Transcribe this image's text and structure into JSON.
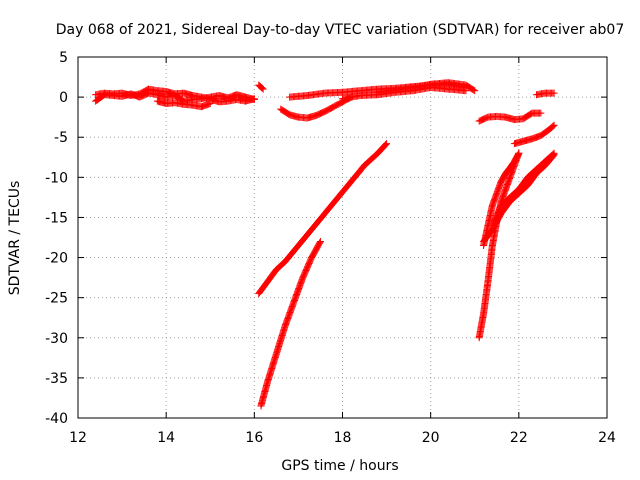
{
  "chart_data": {
    "type": "scatter",
    "title": "Day 068 of 2021, Sidereal Day-to-day VTEC variation (SDTVAR) for receiver ab07",
    "xlabel": "GPS time / hours",
    "ylabel": "SDTVAR / TECUs",
    "xlim": [
      12,
      24
    ],
    "ylim": [
      -40,
      5
    ],
    "xticks": [
      12,
      14,
      16,
      18,
      20,
      22,
      24
    ],
    "yticks": [
      5,
      0,
      -5,
      -10,
      -15,
      -20,
      -25,
      -30,
      -35,
      -40
    ],
    "grid": true,
    "marker": "plus",
    "color": "#ff0000",
    "series": [
      {
        "x": [
          12.4,
          12.6,
          12.8,
          13.0,
          13.2,
          13.4,
          13.6,
          13.8,
          14.0,
          14.2,
          14.4,
          14.6,
          14.8,
          15.0,
          15.2,
          15.4,
          15.6,
          15.8,
          16.0
        ],
        "y": [
          -0.5,
          0.3,
          0.2,
          0.1,
          0.4,
          0.0,
          0.5,
          0.3,
          0.0,
          0.2,
          -0.5,
          -0.3,
          -0.2,
          0.0,
          0.2,
          -0.1,
          0.3,
          0.0,
          -0.3
        ]
      },
      {
        "x": [
          12.4,
          12.6,
          12.8,
          13.0,
          13.2,
          13.4,
          13.6,
          13.8,
          14.0,
          14.2,
          14.4,
          14.6,
          14.8,
          15.0,
          15.2,
          15.4,
          15.6,
          15.8,
          16.0
        ],
        "y": [
          0.3,
          0.5,
          0.4,
          0.5,
          0.2,
          0.4,
          1.0,
          0.8,
          0.7,
          0.4,
          0.5,
          0.2,
          0.0,
          -0.2,
          -0.6,
          -0.5,
          -0.3,
          -0.5,
          -0.2
        ]
      },
      {
        "x": [
          13.8,
          14.0,
          14.2,
          14.4,
          14.6,
          14.8,
          15.0
        ],
        "y": [
          -0.5,
          -0.8,
          -0.7,
          -0.9,
          -1.0,
          -1.2,
          -0.8
        ]
      },
      {
        "x": [
          16.1,
          16.2
        ],
        "y": [
          1.5,
          1.0
        ]
      },
      {
        "x": [
          16.6,
          16.8,
          17.0,
          17.2,
          17.4,
          17.6,
          17.8,
          18.0,
          18.2
        ],
        "y": [
          -1.5,
          -2.2,
          -2.5,
          -2.6,
          -2.3,
          -1.8,
          -1.2,
          -0.6,
          0.0
        ]
      },
      {
        "x": [
          16.8,
          17.2,
          17.6,
          18.0,
          18.4,
          18.8,
          19.2,
          19.6,
          20.0,
          20.4,
          20.8
        ],
        "y": [
          0.0,
          0.2,
          0.5,
          0.6,
          0.8,
          1.0,
          1.1,
          1.3,
          1.5,
          1.6,
          1.2
        ]
      },
      {
        "x": [
          18.0,
          18.4,
          18.8,
          19.2,
          19.6,
          20.0,
          20.4,
          20.8
        ],
        "y": [
          -0.2,
          0.2,
          0.3,
          0.6,
          0.8,
          1.2,
          1.0,
          0.8
        ]
      },
      {
        "x": [
          18.8,
          19.2,
          19.6,
          20.0,
          20.4,
          20.8,
          21.0
        ],
        "y": [
          0.6,
          0.9,
          1.2,
          1.6,
          1.8,
          1.5,
          0.8
        ]
      },
      {
        "x": [
          16.1,
          16.3,
          16.5,
          16.7,
          17.0,
          17.3,
          17.6,
          17.9,
          18.2,
          18.5,
          18.8,
          19.0
        ],
        "y": [
          -24.5,
          -23.0,
          -21.5,
          -20.5,
          -18.5,
          -16.5,
          -14.5,
          -12.5,
          -10.5,
          -8.5,
          -7.0,
          -5.8
        ]
      },
      {
        "x": [
          16.15,
          16.3,
          16.5,
          16.7,
          16.9,
          17.1,
          17.3,
          17.5
        ],
        "y": [
          -38.5,
          -35.5,
          -32.0,
          -28.5,
          -25.5,
          -22.5,
          -20.0,
          -18.0
        ]
      },
      {
        "x": [
          21.1,
          21.3,
          21.5,
          21.7,
          21.9,
          22.1,
          22.3,
          22.5
        ],
        "y": [
          -3.0,
          -2.5,
          -2.4,
          -2.5,
          -2.8,
          -2.7,
          -2.0,
          -2.0
        ]
      },
      {
        "x": [
          22.4,
          22.6,
          22.8
        ],
        "y": [
          0.3,
          0.5,
          0.5
        ]
      },
      {
        "x": [
          21.9,
          22.1,
          22.3,
          22.5,
          22.7,
          22.8
        ],
        "y": [
          -5.8,
          -5.5,
          -5.2,
          -4.8,
          -4.0,
          -3.5
        ]
      },
      {
        "x": [
          21.1,
          21.2,
          21.3,
          21.4,
          21.5,
          21.6,
          21.7,
          21.8,
          21.9,
          22.0
        ],
        "y": [
          -30.0,
          -27.0,
          -23.0,
          -18.5,
          -15.5,
          -13.0,
          -11.5,
          -10.0,
          -8.5,
          -7.0
        ]
      },
      {
        "x": [
          21.2,
          21.3,
          21.4,
          21.5,
          21.6,
          21.7,
          21.8,
          21.9,
          22.0
        ],
        "y": [
          -18.5,
          -16.0,
          -13.5,
          -12.0,
          -10.5,
          -9.5,
          -8.8,
          -8.0,
          -7.0
        ]
      },
      {
        "x": [
          21.4,
          21.6,
          21.8,
          22.0,
          22.2,
          22.4,
          22.6,
          22.8
        ],
        "y": [
          -16.0,
          -13.5,
          -12.5,
          -11.5,
          -10.0,
          -9.0,
          -8.0,
          -7.0
        ]
      },
      {
        "x": [
          21.2,
          21.4,
          21.6,
          21.8,
          22.0,
          22.2,
          22.4,
          22.6,
          22.8
        ],
        "y": [
          -18.0,
          -16.5,
          -14.5,
          -13.0,
          -12.0,
          -11.0,
          -9.5,
          -8.5,
          -7.2
        ]
      }
    ]
  }
}
